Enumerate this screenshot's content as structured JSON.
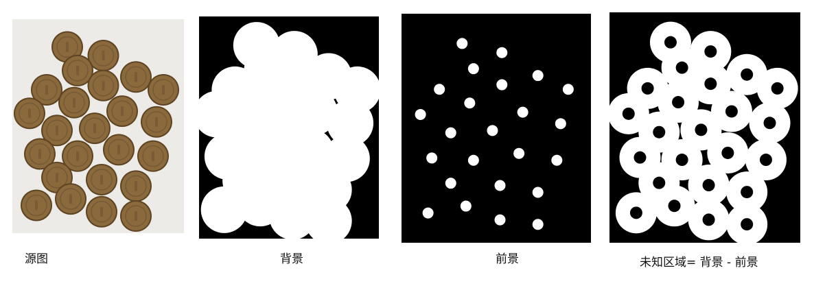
{
  "captions": {
    "source": "源图",
    "background": "背景",
    "foreground": "前景",
    "unknown": "未知区域= 背景 - 前景"
  },
  "colors": {
    "coin_fill": "#8a6a3c",
    "coin_edge": "#5e4422",
    "mask_white": "#ffffff",
    "mask_black": "#000000",
    "paper": "#ecebe7"
  }
}
